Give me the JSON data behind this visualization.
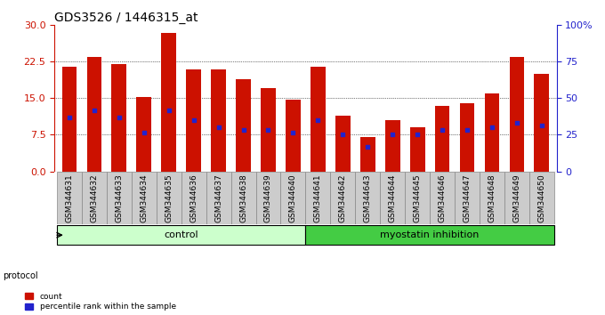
{
  "title": "GDS3526 / 1446315_at",
  "samples": [
    "GSM344631",
    "GSM344632",
    "GSM344633",
    "GSM344634",
    "GSM344635",
    "GSM344636",
    "GSM344637",
    "GSM344638",
    "GSM344639",
    "GSM344640",
    "GSM344641",
    "GSM344642",
    "GSM344643",
    "GSM344644",
    "GSM344645",
    "GSM344646",
    "GSM344647",
    "GSM344648",
    "GSM344649",
    "GSM344650"
  ],
  "bar_heights": [
    21.5,
    23.5,
    22.0,
    15.2,
    28.5,
    21.0,
    21.0,
    19.0,
    17.0,
    14.8,
    21.5,
    11.5,
    7.0,
    10.5,
    9.0,
    13.5,
    14.0,
    16.0,
    23.5,
    20.0
  ],
  "blue_dots": [
    11.0,
    12.5,
    11.0,
    8.0,
    12.5,
    10.5,
    9.0,
    8.5,
    8.5,
    8.0,
    10.5,
    7.5,
    5.0,
    7.5,
    7.5,
    8.5,
    8.5,
    9.0,
    10.0,
    9.5
  ],
  "bar_color": "#CC1100",
  "dot_color": "#2222CC",
  "left_ylim": [
    0,
    30
  ],
  "left_yticks": [
    0,
    7.5,
    15,
    22.5,
    30
  ],
  "right_ylim": [
    0,
    100
  ],
  "right_yticks": [
    0,
    25,
    50,
    75,
    100
  ],
  "right_yticklabels": [
    "0",
    "25",
    "50",
    "75",
    "100%"
  ],
  "control_label": "control",
  "treatment_label": "myostatin inhibition",
  "protocol_label": "protocol",
  "legend_count": "count",
  "legend_percentile": "percentile rank within the sample",
  "control_n": 10,
  "treatment_n": 10,
  "bar_width": 0.6,
  "title_fontsize": 10,
  "tick_fontsize": 6.5,
  "label_fontsize": 7,
  "axis_color_left": "#CC1100",
  "axis_color_right": "#2222CC",
  "bg_control": "#ccffcc",
  "bg_treatment": "#44cc44",
  "bg_xticklabels": "#cccccc",
  "cell_border": "#888888"
}
